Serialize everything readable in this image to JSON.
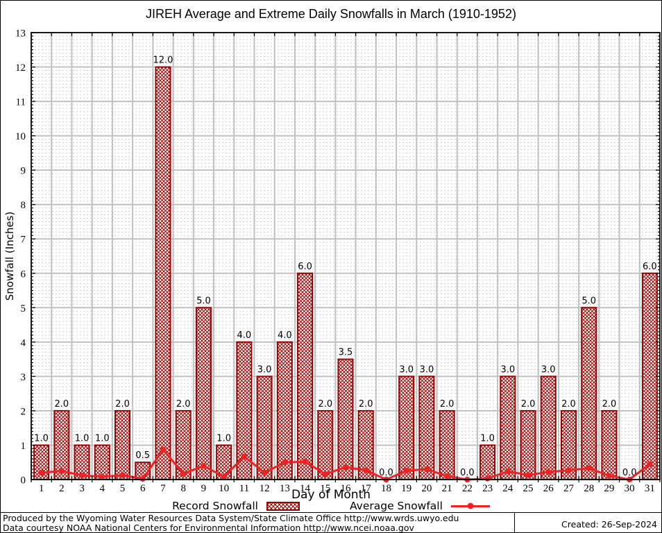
{
  "title": "JIREH Average and Extreme Daily Snowfalls in March (1910-1952)",
  "chart_data": {
    "type": "bar",
    "title": "JIREH Average and Extreme Daily Snowfalls in March (1910-1952)",
    "xlabel": "Day of Month",
    "ylabel": "Snowfall (Inches)",
    "ylim": [
      0,
      13
    ],
    "ytick_step": 1,
    "yminor_step": 0.1,
    "grid": "major and minor, gray",
    "legend_position": "bottom",
    "categories": [
      1,
      2,
      3,
      4,
      5,
      6,
      7,
      8,
      9,
      10,
      11,
      12,
      13,
      14,
      15,
      16,
      17,
      18,
      19,
      20,
      21,
      22,
      23,
      24,
      25,
      26,
      27,
      28,
      29,
      30,
      31
    ],
    "series": [
      {
        "name": "Record Snowfall",
        "type": "bar",
        "color": "#990000",
        "fill": "crosshatch",
        "values": [
          1.0,
          2.0,
          1.0,
          1.0,
          2.0,
          0.5,
          12.0,
          2.0,
          5.0,
          1.0,
          4.0,
          3.0,
          4.0,
          6.0,
          2.0,
          3.5,
          2.0,
          0.0,
          3.0,
          3.0,
          2.0,
          0.0,
          1.0,
          3.0,
          2.0,
          3.0,
          2.0,
          5.0,
          2.0,
          0.0,
          6.0
        ],
        "labels": [
          "1.0",
          "2.0",
          "1.0",
          "1.0",
          "2.0",
          "0.5",
          "12.0",
          "2.0",
          "5.0",
          "1.0",
          "4.0",
          "3.0",
          "4.0",
          "6.0",
          "2.0",
          "3.5",
          "2.0",
          "0.0",
          "3.0",
          "3.0",
          "2.0",
          "0.0",
          "1.0",
          "3.0",
          "2.0",
          "3.0",
          "2.0",
          "5.0",
          "2.0",
          "0.0",
          "6.0"
        ],
        "values_note": "record daily snowfall in inches, labeled above each bar"
      },
      {
        "name": "Average Snowfall",
        "type": "line",
        "color": "#ee2222",
        "marker": "filled-circle",
        "values": [
          0.2,
          0.25,
          0.12,
          0.08,
          0.13,
          0.02,
          0.87,
          0.17,
          0.4,
          0.08,
          0.67,
          0.2,
          0.5,
          0.52,
          0.16,
          0.36,
          0.27,
          0.0,
          0.26,
          0.3,
          0.1,
          0.0,
          0.03,
          0.24,
          0.13,
          0.22,
          0.27,
          0.33,
          0.11,
          0.0,
          0.45
        ],
        "values_note": "estimated from plot; line hugs axis, peak near day 7"
      }
    ]
  },
  "colors": {
    "bar_border": "#990000",
    "bar_hatch": "#990000",
    "average_line": "#ee2222",
    "grid_major": "#c0c0c0",
    "grid_minor": "#cccccc",
    "axis": "#000000",
    "background": "#ffffff"
  },
  "footer": {
    "line1": "Produced by the Wyoming Water Resources Data System/State Climate Office http://www.wrds.uwyo.edu",
    "line2": "Data courtesy NOAA National Centers for Environmental Information http://www.ncei.noaa.gov",
    "created": "Created: 26-Sep-2024"
  }
}
